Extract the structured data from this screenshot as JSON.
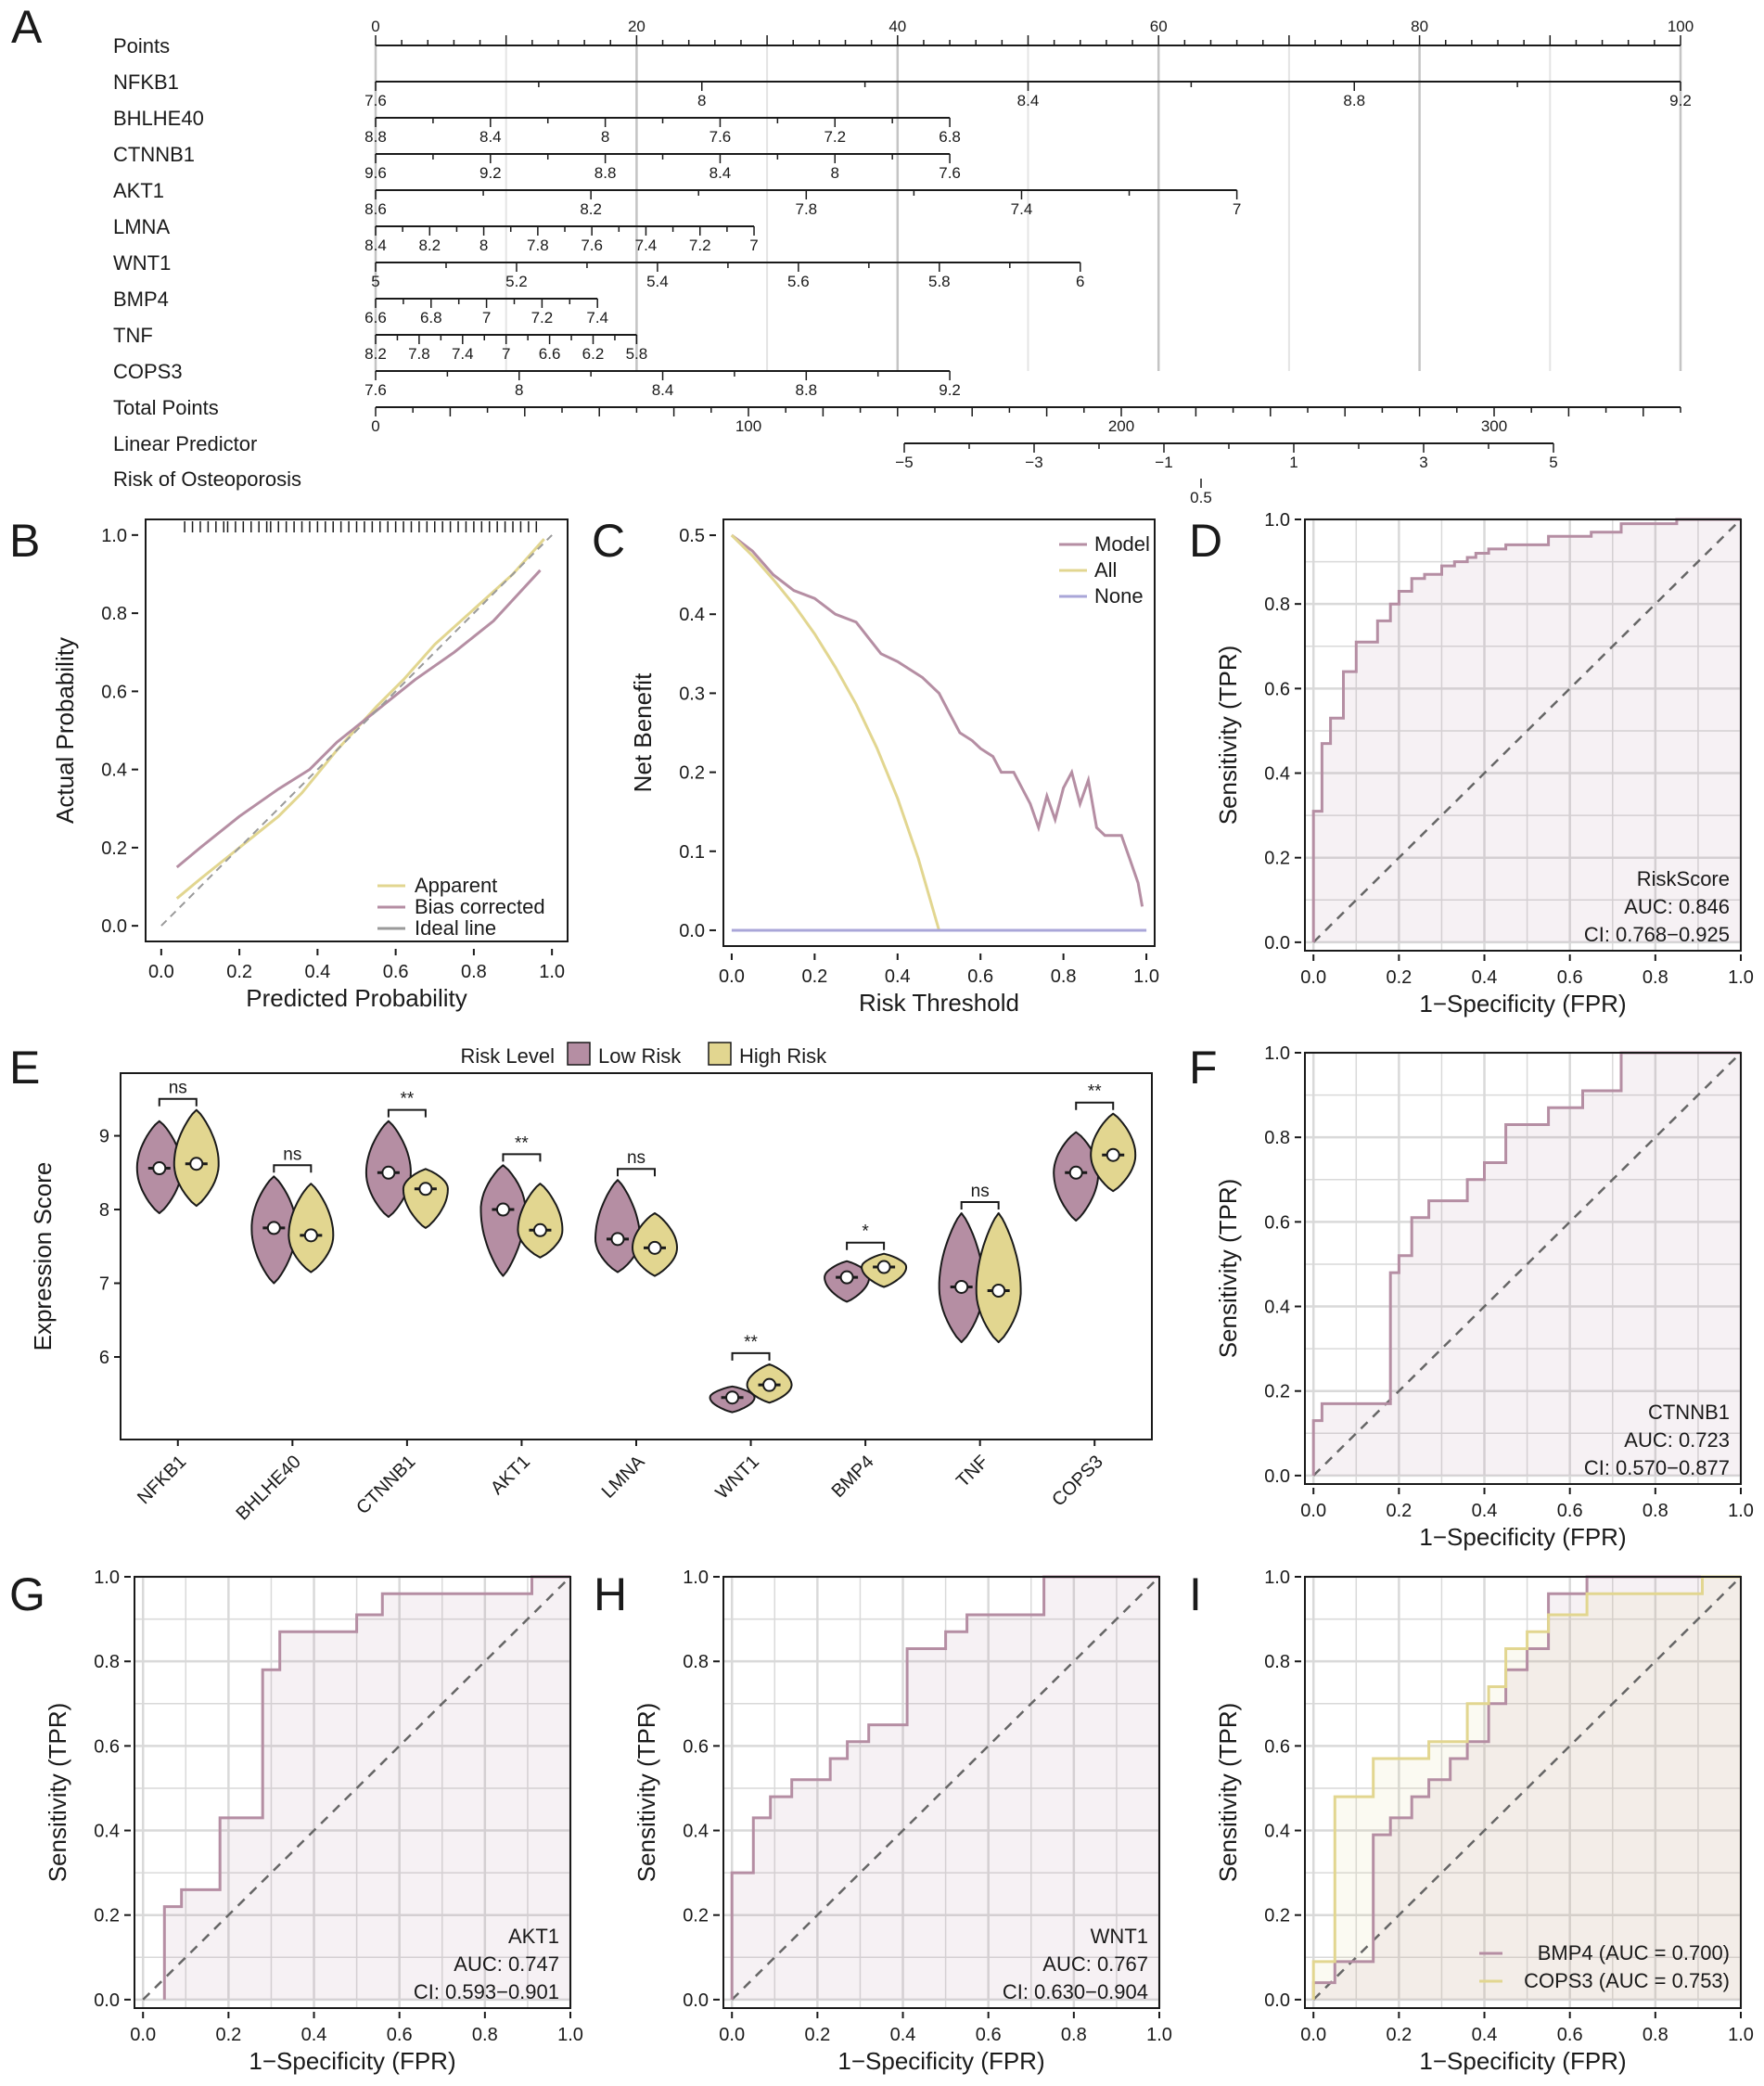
{
  "chart_data": [
    {
      "panel": "A",
      "type": "nomogram",
      "rows": [
        {
          "label": "Points",
          "x0": 0,
          "x1": 100,
          "labels": [
            "0",
            "20",
            "40",
            "60",
            "80",
            "100"
          ]
        },
        {
          "label": "NFKB1",
          "x0": 0,
          "x1": 100,
          "labels": [
            "7.6",
            "8",
            "8.4",
            "8.8",
            "9.2"
          ]
        },
        {
          "label": "BHLHE40",
          "x0": 0,
          "x1": 44,
          "labels": [
            "8.8",
            "8.4",
            "8",
            "7.6",
            "7.2",
            "6.8"
          ]
        },
        {
          "label": "CTNNB1",
          "x0": 0,
          "x1": 44,
          "labels": [
            "9.6",
            "9.2",
            "8.8",
            "8.4",
            "8",
            "7.6"
          ]
        },
        {
          "label": "AKT1",
          "x0": 0,
          "x1": 66,
          "labels": [
            "8.6",
            "8.2",
            "7.8",
            "7.4",
            "7"
          ]
        },
        {
          "label": "LMNA",
          "x0": 0,
          "x1": 29,
          "labels": [
            "8.4",
            "8.2",
            "8",
            "7.8",
            "7.6",
            "7.4",
            "7.2",
            "7"
          ]
        },
        {
          "label": "WNT1",
          "x0": 0,
          "x1": 54,
          "labels": [
            "5",
            "5.2",
            "5.4",
            "5.6",
            "5.8",
            "6"
          ]
        },
        {
          "label": "BMP4",
          "x0": 0,
          "x1": 17,
          "labels": [
            "6.6",
            "6.8",
            "7",
            "7.2",
            "7.4"
          ]
        },
        {
          "label": "TNF",
          "x0": 0,
          "x1": 20,
          "labels": [
            "8.2",
            "7.8",
            "7.4",
            "7",
            "6.6",
            "6.2",
            "5.8"
          ]
        },
        {
          "label": "COPS3",
          "x0": 0,
          "x1": 44,
          "labels": [
            "7.6",
            "8",
            "8.4",
            "8.8",
            "9.2"
          ]
        },
        {
          "label": "Total Points",
          "x0": 0,
          "x1": 350,
          "labels": [
            "0",
            "100",
            "200",
            "300"
          ]
        },
        {
          "label": "Linear Predictor",
          "x0": -5,
          "x1": 5.5,
          "labels": [
            "−5",
            "−3",
            "−1",
            "1",
            "3",
            "5"
          ]
        },
        {
          "label": "Risk of Osteoporosis",
          "x0": 0,
          "x1": 1,
          "labels": [
            "0.5"
          ]
        }
      ]
    },
    {
      "panel": "B",
      "type": "line",
      "xlabel": "Predicted Probability",
      "ylabel": "Actual Probability",
      "xlim": [
        0,
        1
      ],
      "ylim": [
        0,
        1
      ],
      "xticks": [
        "0.0",
        "0.2",
        "0.4",
        "0.6",
        "0.8",
        "1.0"
      ],
      "yticks": [
        "0.0",
        "0.2",
        "0.4",
        "0.6",
        "0.8",
        "1.0"
      ],
      "series": [
        {
          "name": "Apparent",
          "color": "#e2d690",
          "x": [
            0.04,
            0.1,
            0.2,
            0.3,
            0.36,
            0.45,
            0.55,
            0.62,
            0.7,
            0.8,
            0.9,
            0.98
          ],
          "y": [
            0.07,
            0.12,
            0.2,
            0.28,
            0.34,
            0.45,
            0.56,
            0.63,
            0.72,
            0.81,
            0.9,
            0.99
          ]
        },
        {
          "name": "Bias corrected",
          "color": "#b58ea3",
          "x": [
            0.04,
            0.1,
            0.2,
            0.3,
            0.38,
            0.45,
            0.55,
            0.65,
            0.75,
            0.85,
            0.97
          ],
          "y": [
            0.15,
            0.2,
            0.28,
            0.35,
            0.4,
            0.47,
            0.55,
            0.63,
            0.7,
            0.78,
            0.91
          ]
        },
        {
          "name": "Ideal line",
          "color": "#9a9a9a",
          "dashed": true,
          "x": [
            0,
            1
          ],
          "y": [
            0,
            1
          ]
        }
      ],
      "rug": [
        0.06,
        0.08,
        0.1,
        0.12,
        0.14,
        0.16,
        0.17,
        0.19,
        0.21,
        0.23,
        0.25,
        0.27,
        0.28,
        0.3,
        0.32,
        0.34,
        0.36,
        0.38,
        0.4,
        0.42,
        0.44,
        0.46,
        0.48,
        0.5,
        0.52,
        0.54,
        0.56,
        0.58,
        0.6,
        0.62,
        0.64,
        0.66,
        0.68,
        0.7,
        0.72,
        0.74,
        0.76,
        0.78,
        0.8,
        0.82,
        0.84,
        0.86,
        0.88,
        0.9,
        0.92,
        0.94,
        0.96
      ]
    },
    {
      "panel": "C",
      "type": "line",
      "xlabel": "Risk Threshold",
      "ylabel": "Net Benefit",
      "xlim": [
        0,
        1
      ],
      "ylim": [
        0,
        0.5
      ],
      "xticks": [
        "0.0",
        "0.2",
        "0.4",
        "0.6",
        "0.8",
        "1.0"
      ],
      "yticks": [
        "0.0",
        "0.1",
        "0.2",
        "0.3",
        "0.4",
        "0.5"
      ],
      "series": [
        {
          "name": "Model",
          "color": "#b58ea3",
          "x": [
            0,
            0.05,
            0.1,
            0.15,
            0.2,
            0.25,
            0.3,
            0.33,
            0.36,
            0.4,
            0.43,
            0.46,
            0.5,
            0.52,
            0.55,
            0.58,
            0.6,
            0.63,
            0.65,
            0.68,
            0.7,
            0.72,
            0.74,
            0.76,
            0.78,
            0.8,
            0.82,
            0.84,
            0.86,
            0.88,
            0.9,
            0.92,
            0.94,
            0.96,
            0.98,
            0.99
          ],
          "y": [
            0.5,
            0.48,
            0.45,
            0.43,
            0.42,
            0.4,
            0.39,
            0.37,
            0.35,
            0.34,
            0.33,
            0.32,
            0.3,
            0.28,
            0.25,
            0.24,
            0.23,
            0.22,
            0.2,
            0.2,
            0.18,
            0.16,
            0.13,
            0.17,
            0.14,
            0.18,
            0.2,
            0.16,
            0.19,
            0.13,
            0.12,
            0.12,
            0.12,
            0.09,
            0.06,
            0.03
          ]
        },
        {
          "name": "All",
          "color": "#e2d690",
          "x": [
            0,
            0.05,
            0.1,
            0.15,
            0.2,
            0.25,
            0.3,
            0.35,
            0.4,
            0.45,
            0.5
          ],
          "y": [
            0.5,
            0.474,
            0.444,
            0.412,
            0.375,
            0.333,
            0.286,
            0.231,
            0.167,
            0.091,
            0
          ]
        },
        {
          "name": "None",
          "color": "#a9a6d8",
          "x": [
            0,
            1
          ],
          "y": [
            0,
            0
          ]
        }
      ]
    },
    {
      "panel": "D",
      "type": "roc",
      "xlabel": "1−Specificity (FPR)",
      "ylabel": "Sensitivity (TPR)",
      "xticks": [
        "0.0",
        "0.2",
        "0.4",
        "0.6",
        "0.8",
        "1.0"
      ],
      "yticks": [
        "0.0",
        "0.2",
        "0.4",
        "0.6",
        "0.8",
        "1.0"
      ],
      "label": "RiskScore",
      "auc": "AUC: 0.846",
      "ci": "CI: 0.768−0.925",
      "x": [
        0,
        0,
        0.02,
        0.02,
        0.04,
        0.04,
        0.07,
        0.07,
        0.1,
        0.1,
        0.15,
        0.15,
        0.18,
        0.18,
        0.2,
        0.2,
        0.23,
        0.23,
        0.26,
        0.26,
        0.3,
        0.3,
        0.33,
        0.33,
        0.36,
        0.36,
        0.38,
        0.38,
        0.41,
        0.41,
        0.45,
        0.45,
        0.55,
        0.55,
        0.65,
        0.65,
        0.72,
        0.72,
        0.85,
        0.85,
        1
      ],
      "y": [
        0,
        0.31,
        0.31,
        0.47,
        0.47,
        0.53,
        0.53,
        0.64,
        0.64,
        0.71,
        0.71,
        0.76,
        0.76,
        0.8,
        0.8,
        0.83,
        0.83,
        0.86,
        0.86,
        0.87,
        0.87,
        0.89,
        0.89,
        0.9,
        0.9,
        0.91,
        0.91,
        0.92,
        0.92,
        0.93,
        0.93,
        0.94,
        0.94,
        0.96,
        0.96,
        0.97,
        0.97,
        0.99,
        0.99,
        1,
        1
      ]
    },
    {
      "panel": "E",
      "type": "violin",
      "ylabel": "Expression Score",
      "ylim": [
        5,
        9.7
      ],
      "yticks": [
        "6",
        "7",
        "8",
        "9"
      ],
      "legend_title": "Risk Level",
      "groups": [
        "Low Risk",
        "High Risk"
      ],
      "colors": [
        "#b58ea3",
        "#e2d690"
      ],
      "categories": [
        "NFKB1",
        "BHLHE40",
        "CTNNB1",
        "AKT1",
        "LMNA",
        "WNT1",
        "BMP4",
        "TNF",
        "COPS3"
      ],
      "low": {
        "median": [
          8.56,
          7.75,
          8.5,
          8.0,
          7.6,
          5.45,
          7.08,
          6.95,
          8.5
        ],
        "min": [
          7.95,
          7.0,
          7.9,
          7.1,
          7.15,
          5.25,
          6.75,
          6.2,
          7.85
        ],
        "max": [
          9.2,
          8.45,
          9.2,
          8.6,
          8.4,
          5.6,
          7.3,
          7.95,
          9.05
        ]
      },
      "high": {
        "median": [
          8.62,
          7.65,
          8.28,
          7.72,
          7.48,
          5.62,
          7.22,
          6.9,
          8.74
        ],
        "min": [
          8.05,
          7.15,
          7.75,
          7.35,
          7.1,
          5.38,
          6.95,
          6.2,
          8.25
        ],
        "max": [
          9.35,
          8.35,
          8.55,
          8.35,
          7.95,
          5.9,
          7.4,
          7.95,
          9.3
        ]
      },
      "significance": [
        "ns",
        "ns",
        "**",
        "**",
        "ns",
        "**",
        "*",
        "ns",
        "**"
      ]
    },
    {
      "panel": "F",
      "type": "roc",
      "xlabel": "1−Specificity (FPR)",
      "ylabel": "Sensitivity (TPR)",
      "xticks": [
        "0.0",
        "0.2",
        "0.4",
        "0.6",
        "0.8",
        "1.0"
      ],
      "yticks": [
        "0.0",
        "0.2",
        "0.4",
        "0.6",
        "0.8",
        "1.0"
      ],
      "label": "CTNNB1",
      "auc": "AUC: 0.723",
      "ci": "CI: 0.570−0.877",
      "x": [
        0,
        0,
        0.02,
        0.02,
        0.18,
        0.18,
        0.2,
        0.2,
        0.23,
        0.23,
        0.27,
        0.27,
        0.36,
        0.36,
        0.4,
        0.4,
        0.45,
        0.45,
        0.55,
        0.55,
        0.63,
        0.63,
        0.72,
        0.72,
        1
      ],
      "y": [
        0,
        0.13,
        0.13,
        0.17,
        0.17,
        0.48,
        0.48,
        0.52,
        0.52,
        0.61,
        0.61,
        0.65,
        0.65,
        0.7,
        0.7,
        0.74,
        0.74,
        0.83,
        0.83,
        0.87,
        0.87,
        0.91,
        0.91,
        1,
        1
      ]
    },
    {
      "panel": "G",
      "type": "roc",
      "xlabel": "1−Specificity (FPR)",
      "ylabel": "Sensitivity (TPR)",
      "xticks": [
        "0.0",
        "0.2",
        "0.4",
        "0.6",
        "0.8",
        "1.0"
      ],
      "yticks": [
        "0.0",
        "0.2",
        "0.4",
        "0.6",
        "0.8",
        "1.0"
      ],
      "label": "AKT1",
      "auc": "AUC: 0.747",
      "ci": "CI: 0.593−0.901",
      "x": [
        0.05,
        0.05,
        0.09,
        0.09,
        0.18,
        0.18,
        0.28,
        0.28,
        0.32,
        0.32,
        0.5,
        0.5,
        0.56,
        0.56,
        0.91,
        0.91,
        1
      ],
      "y": [
        0,
        0.22,
        0.22,
        0.26,
        0.26,
        0.43,
        0.43,
        0.78,
        0.78,
        0.87,
        0.87,
        0.91,
        0.91,
        0.96,
        0.96,
        1,
        1
      ]
    },
    {
      "panel": "H",
      "type": "roc",
      "xlabel": "1−Specificity (FPR)",
      "ylabel": "Sensitivity (TPR)",
      "xticks": [
        "0.0",
        "0.2",
        "0.4",
        "0.6",
        "0.8",
        "1.0"
      ],
      "yticks": [
        "0.0",
        "0.2",
        "0.4",
        "0.6",
        "0.8",
        "1.0"
      ],
      "label": "WNT1",
      "auc": "AUC: 0.767",
      "ci": "CI: 0.630−0.904",
      "x": [
        0,
        0,
        0.05,
        0.05,
        0.09,
        0.09,
        0.14,
        0.14,
        0.18,
        0.18,
        0.23,
        0.23,
        0.27,
        0.27,
        0.32,
        0.32,
        0.41,
        0.41,
        0.5,
        0.5,
        0.55,
        0.55,
        0.73,
        0.73,
        1
      ],
      "y": [
        0,
        0.3,
        0.3,
        0.43,
        0.43,
        0.48,
        0.48,
        0.52,
        0.52,
        0.52,
        0.52,
        0.57,
        0.57,
        0.61,
        0.61,
        0.65,
        0.65,
        0.83,
        0.83,
        0.87,
        0.87,
        0.91,
        0.91,
        1,
        1
      ]
    },
    {
      "panel": "I",
      "type": "roc",
      "xlabel": "1−Specificity (FPR)",
      "ylabel": "Sensitivity (TPR)",
      "xticks": [
        "0.0",
        "0.2",
        "0.4",
        "0.6",
        "0.8",
        "1.0"
      ],
      "yticks": [
        "0.0",
        "0.2",
        "0.4",
        "0.6",
        "0.8",
        "1.0"
      ],
      "series": [
        {
          "name": "BMP4 (AUC = 0.700)",
          "color": "#b58ea3",
          "x": [
            0,
            0,
            0.05,
            0.05,
            0.14,
            0.14,
            0.18,
            0.18,
            0.23,
            0.23,
            0.27,
            0.27,
            0.32,
            0.32,
            0.36,
            0.36,
            0.41,
            0.41,
            0.45,
            0.45,
            0.5,
            0.5,
            0.55,
            0.55,
            0.64,
            0.64,
            1
          ],
          "y": [
            0,
            0.04,
            0.04,
            0.09,
            0.09,
            0.39,
            0.39,
            0.43,
            0.43,
            0.48,
            0.48,
            0.52,
            0.52,
            0.57,
            0.57,
            0.61,
            0.61,
            0.7,
            0.7,
            0.78,
            0.78,
            0.83,
            0.83,
            0.96,
            0.96,
            1,
            1
          ]
        },
        {
          "name": "COPS3 (AUC = 0.753)",
          "color": "#e2d690",
          "x": [
            0,
            0,
            0.05,
            0.05,
            0.14,
            0.14,
            0.27,
            0.27,
            0.36,
            0.36,
            0.41,
            0.41,
            0.45,
            0.45,
            0.5,
            0.5,
            0.55,
            0.55,
            0.64,
            0.64,
            0.91,
            0.91,
            1
          ],
          "y": [
            0,
            0.09,
            0.09,
            0.48,
            0.48,
            0.57,
            0.57,
            0.61,
            0.61,
            0.7,
            0.7,
            0.74,
            0.74,
            0.83,
            0.83,
            0.87,
            0.87,
            0.91,
            0.91,
            0.96,
            0.96,
            1,
            1
          ]
        }
      ]
    }
  ]
}
